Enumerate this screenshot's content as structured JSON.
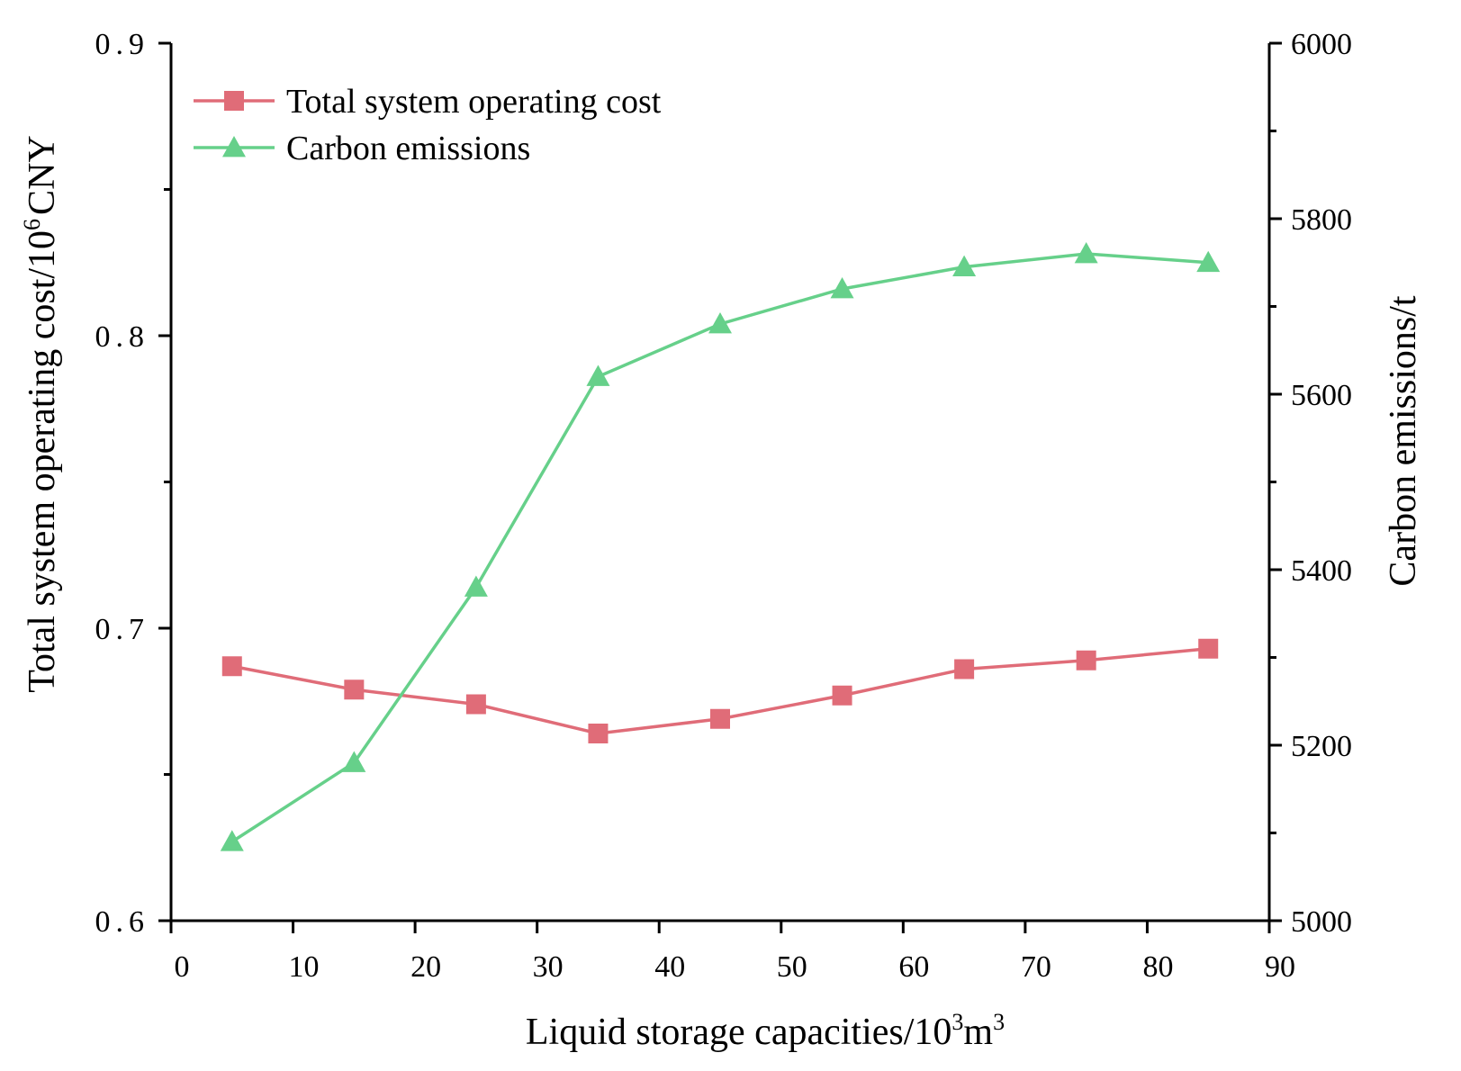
{
  "chart_data": {
    "type": "line",
    "x": [
      5,
      15,
      25,
      35,
      45,
      55,
      65,
      75,
      85
    ],
    "xlim": [
      0,
      90
    ],
    "xticks": [
      "0",
      "10",
      "20",
      "30",
      "40",
      "50",
      "60",
      "70",
      "80",
      "90"
    ],
    "xlabel": {
      "main": "Liquid storage capacities/10",
      "exp1": "3",
      "unit": "m",
      "exp2": "3"
    },
    "ylabel_left": {
      "main": "Total system operating cost/10",
      "exp": "6",
      "unit": "CNY"
    },
    "ylabel_right": "Carbon emissions/t",
    "ylim_left": [
      0.6,
      0.9
    ],
    "ylim_right": [
      5000,
      6000
    ],
    "yticks_left": [
      "0.6",
      "0.7",
      "0.8",
      "0.9"
    ],
    "yticks_right": [
      "5000",
      "5200",
      "5400",
      "5600",
      "5800",
      "6000"
    ],
    "series": [
      {
        "name": "Total system operating cost",
        "axis": "left",
        "marker": "square",
        "color": "#e06c78",
        "values": [
          0.687,
          0.679,
          0.674,
          0.664,
          0.669,
          0.677,
          0.686,
          0.689,
          0.693
        ]
      },
      {
        "name": "Carbon emissions",
        "axis": "right",
        "marker": "triangle",
        "color": "#66d08a",
        "values": [
          5090,
          5180,
          5380,
          5620,
          5680,
          5720,
          5745,
          5760,
          5750
        ]
      }
    ],
    "legend_position": "top-left"
  }
}
